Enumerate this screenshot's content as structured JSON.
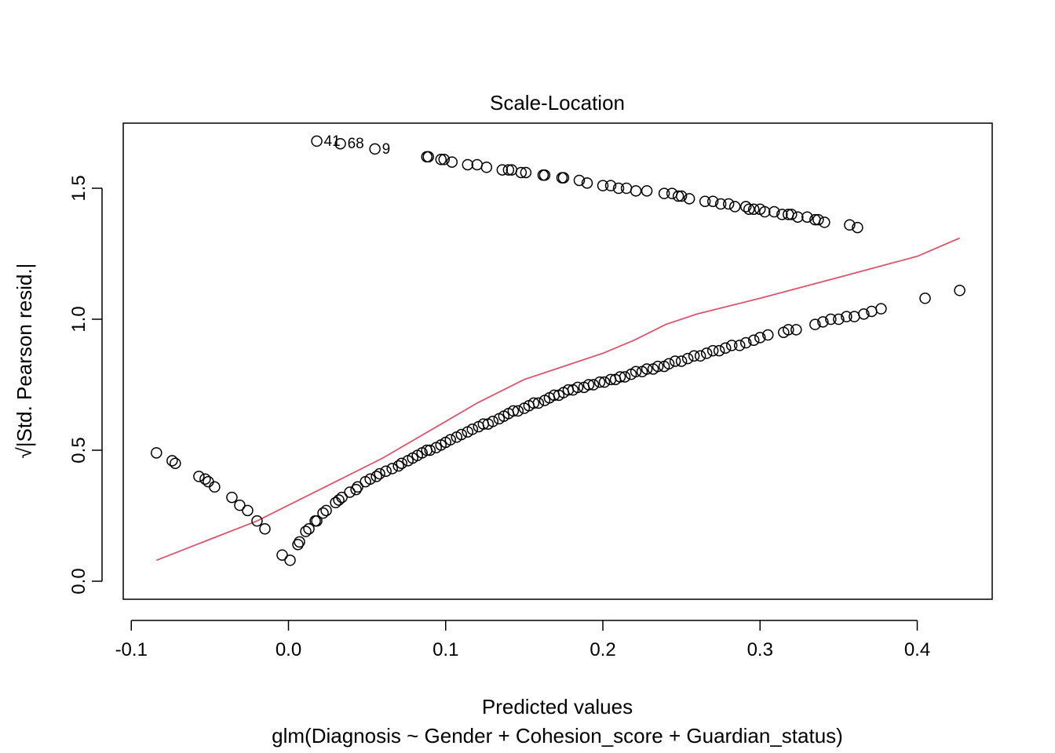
{
  "chart_data": {
    "type": "scatter",
    "title": "Scale-Location",
    "xlabel": "Predicted values",
    "subtitle": "glm(Diagnosis ~ Gender + Cohesion_score + Guardian_status)",
    "ylabel": "√|Std. Pearson resid.|",
    "xlim": [
      -0.1,
      0.45
    ],
    "ylim": [
      -0.06,
      1.71
    ],
    "xticks": [
      "-0.1",
      "0.0",
      "0.1",
      "0.2",
      "0.3",
      "0.4"
    ],
    "xtick_values": [
      -0.1,
      0.0,
      0.1,
      0.2,
      0.3,
      0.4
    ],
    "yticks": [
      "0.0",
      "0.5",
      "1.0",
      "1.5"
    ],
    "ytick_values": [
      0.0,
      0.5,
      1.0,
      1.5
    ],
    "grid": false,
    "point_labels": [
      {
        "text": "41",
        "x": 0.018,
        "y": 1.68
      },
      {
        "text": "68",
        "x": 0.033,
        "y": 1.67
      },
      {
        "text": "9",
        "x": 0.055,
        "y": 1.65
      }
    ],
    "series": [
      {
        "color": "#000000",
        "points": [
          [
            0.018,
            1.68
          ],
          [
            0.033,
            1.67
          ],
          [
            0.055,
            1.65
          ],
          [
            0.088,
            1.62
          ],
          [
            0.089,
            1.62
          ],
          [
            0.097,
            1.61
          ],
          [
            0.099,
            1.61
          ],
          [
            0.104,
            1.6
          ],
          [
            0.114,
            1.59
          ],
          [
            0.12,
            1.59
          ],
          [
            0.126,
            1.58
          ],
          [
            0.136,
            1.57
          ],
          [
            0.14,
            1.57
          ],
          [
            0.142,
            1.57
          ],
          [
            0.148,
            1.56
          ],
          [
            0.151,
            1.56
          ],
          [
            0.162,
            1.55
          ],
          [
            0.163,
            1.55
          ],
          [
            0.174,
            1.54
          ],
          [
            0.175,
            1.54
          ],
          [
            0.185,
            1.53
          ],
          [
            0.19,
            1.52
          ],
          [
            0.2,
            1.51
          ],
          [
            0.205,
            1.51
          ],
          [
            0.21,
            1.5
          ],
          [
            0.215,
            1.5
          ],
          [
            0.221,
            1.49
          ],
          [
            0.228,
            1.49
          ],
          [
            0.239,
            1.48
          ],
          [
            0.244,
            1.48
          ],
          [
            0.248,
            1.47
          ],
          [
            0.25,
            1.47
          ],
          [
            0.255,
            1.46
          ],
          [
            0.265,
            1.45
          ],
          [
            0.27,
            1.45
          ],
          [
            0.275,
            1.44
          ],
          [
            0.28,
            1.44
          ],
          [
            0.284,
            1.43
          ],
          [
            0.291,
            1.43
          ],
          [
            0.293,
            1.42
          ],
          [
            0.296,
            1.42
          ],
          [
            0.3,
            1.42
          ],
          [
            0.303,
            1.41
          ],
          [
            0.309,
            1.41
          ],
          [
            0.314,
            1.4
          ],
          [
            0.318,
            1.4
          ],
          [
            0.32,
            1.4
          ],
          [
            0.324,
            1.39
          ],
          [
            0.33,
            1.39
          ],
          [
            0.335,
            1.38
          ],
          [
            0.337,
            1.38
          ],
          [
            0.341,
            1.37
          ],
          [
            0.357,
            1.36
          ],
          [
            0.362,
            1.35
          ],
          [
            -0.084,
            0.49
          ],
          [
            -0.074,
            0.46
          ],
          [
            -0.072,
            0.45
          ],
          [
            -0.057,
            0.4
          ],
          [
            -0.053,
            0.39
          ],
          [
            -0.051,
            0.38
          ],
          [
            -0.047,
            0.36
          ],
          [
            -0.036,
            0.32
          ],
          [
            -0.031,
            0.29
          ],
          [
            -0.026,
            0.27
          ],
          [
            -0.02,
            0.23
          ],
          [
            -0.015,
            0.2
          ],
          [
            -0.004,
            0.1
          ],
          [
            0.001,
            0.08
          ],
          [
            0.006,
            0.14
          ],
          [
            0.007,
            0.15
          ],
          [
            0.011,
            0.19
          ],
          [
            0.013,
            0.2
          ],
          [
            0.017,
            0.23
          ],
          [
            0.018,
            0.23
          ],
          [
            0.022,
            0.26
          ],
          [
            0.024,
            0.27
          ],
          [
            0.03,
            0.3
          ],
          [
            0.032,
            0.31
          ],
          [
            0.034,
            0.32
          ],
          [
            0.039,
            0.34
          ],
          [
            0.043,
            0.35
          ],
          [
            0.044,
            0.36
          ],
          [
            0.049,
            0.38
          ],
          [
            0.052,
            0.39
          ],
          [
            0.056,
            0.4
          ],
          [
            0.058,
            0.41
          ],
          [
            0.062,
            0.42
          ],
          [
            0.066,
            0.43
          ],
          [
            0.07,
            0.44
          ],
          [
            0.072,
            0.45
          ],
          [
            0.076,
            0.46
          ],
          [
            0.079,
            0.47
          ],
          [
            0.082,
            0.48
          ],
          [
            0.085,
            0.49
          ],
          [
            0.088,
            0.5
          ],
          [
            0.09,
            0.5
          ],
          [
            0.094,
            0.51
          ],
          [
            0.097,
            0.52
          ],
          [
            0.1,
            0.53
          ],
          [
            0.103,
            0.54
          ],
          [
            0.107,
            0.55
          ],
          [
            0.11,
            0.56
          ],
          [
            0.114,
            0.57
          ],
          [
            0.117,
            0.58
          ],
          [
            0.121,
            0.59
          ],
          [
            0.124,
            0.6
          ],
          [
            0.127,
            0.6
          ],
          [
            0.13,
            0.61
          ],
          [
            0.134,
            0.62
          ],
          [
            0.137,
            0.63
          ],
          [
            0.14,
            0.64
          ],
          [
            0.143,
            0.65
          ],
          [
            0.146,
            0.65
          ],
          [
            0.15,
            0.66
          ],
          [
            0.153,
            0.67
          ],
          [
            0.156,
            0.68
          ],
          [
            0.159,
            0.68
          ],
          [
            0.163,
            0.69
          ],
          [
            0.166,
            0.7
          ],
          [
            0.169,
            0.71
          ],
          [
            0.172,
            0.71
          ],
          [
            0.175,
            0.72
          ],
          [
            0.178,
            0.73
          ],
          [
            0.181,
            0.73
          ],
          [
            0.184,
            0.74
          ],
          [
            0.188,
            0.74
          ],
          [
            0.191,
            0.75
          ],
          [
            0.194,
            0.75
          ],
          [
            0.198,
            0.76
          ],
          [
            0.201,
            0.76
          ],
          [
            0.205,
            0.77
          ],
          [
            0.208,
            0.77
          ],
          [
            0.211,
            0.78
          ],
          [
            0.214,
            0.78
          ],
          [
            0.218,
            0.79
          ],
          [
            0.221,
            0.8
          ],
          [
            0.225,
            0.8
          ],
          [
            0.228,
            0.81
          ],
          [
            0.232,
            0.81
          ],
          [
            0.235,
            0.82
          ],
          [
            0.239,
            0.82
          ],
          [
            0.242,
            0.83
          ],
          [
            0.246,
            0.84
          ],
          [
            0.25,
            0.84
          ],
          [
            0.254,
            0.85
          ],
          [
            0.258,
            0.86
          ],
          [
            0.262,
            0.86
          ],
          [
            0.266,
            0.87
          ],
          [
            0.27,
            0.88
          ],
          [
            0.274,
            0.88
          ],
          [
            0.278,
            0.89
          ],
          [
            0.282,
            0.9
          ],
          [
            0.287,
            0.9
          ],
          [
            0.291,
            0.91
          ],
          [
            0.296,
            0.92
          ],
          [
            0.3,
            0.93
          ],
          [
            0.305,
            0.94
          ],
          [
            0.315,
            0.95
          ],
          [
            0.318,
            0.96
          ],
          [
            0.323,
            0.96
          ],
          [
            0.335,
            0.98
          ],
          [
            0.34,
            0.99
          ],
          [
            0.345,
            1.0
          ],
          [
            0.35,
            1.0
          ],
          [
            0.355,
            1.01
          ],
          [
            0.36,
            1.01
          ],
          [
            0.366,
            1.02
          ],
          [
            0.371,
            1.03
          ],
          [
            0.377,
            1.04
          ],
          [
            0.405,
            1.08
          ],
          [
            0.427,
            1.11
          ]
        ]
      },
      {
        "color": "#DF536B",
        "line": [
          [
            -0.084,
            0.08
          ],
          [
            -0.05,
            0.16
          ],
          [
            -0.02,
            0.23
          ],
          [
            0.0,
            0.29
          ],
          [
            0.03,
            0.38
          ],
          [
            0.06,
            0.47
          ],
          [
            0.08,
            0.54
          ],
          [
            0.1,
            0.61
          ],
          [
            0.12,
            0.68
          ],
          [
            0.15,
            0.77
          ],
          [
            0.17,
            0.81
          ],
          [
            0.2,
            0.87
          ],
          [
            0.22,
            0.92
          ],
          [
            0.24,
            0.98
          ],
          [
            0.26,
            1.02
          ],
          [
            0.3,
            1.08
          ],
          [
            0.35,
            1.16
          ],
          [
            0.4,
            1.24
          ],
          [
            0.427,
            1.31
          ]
        ]
      }
    ]
  }
}
